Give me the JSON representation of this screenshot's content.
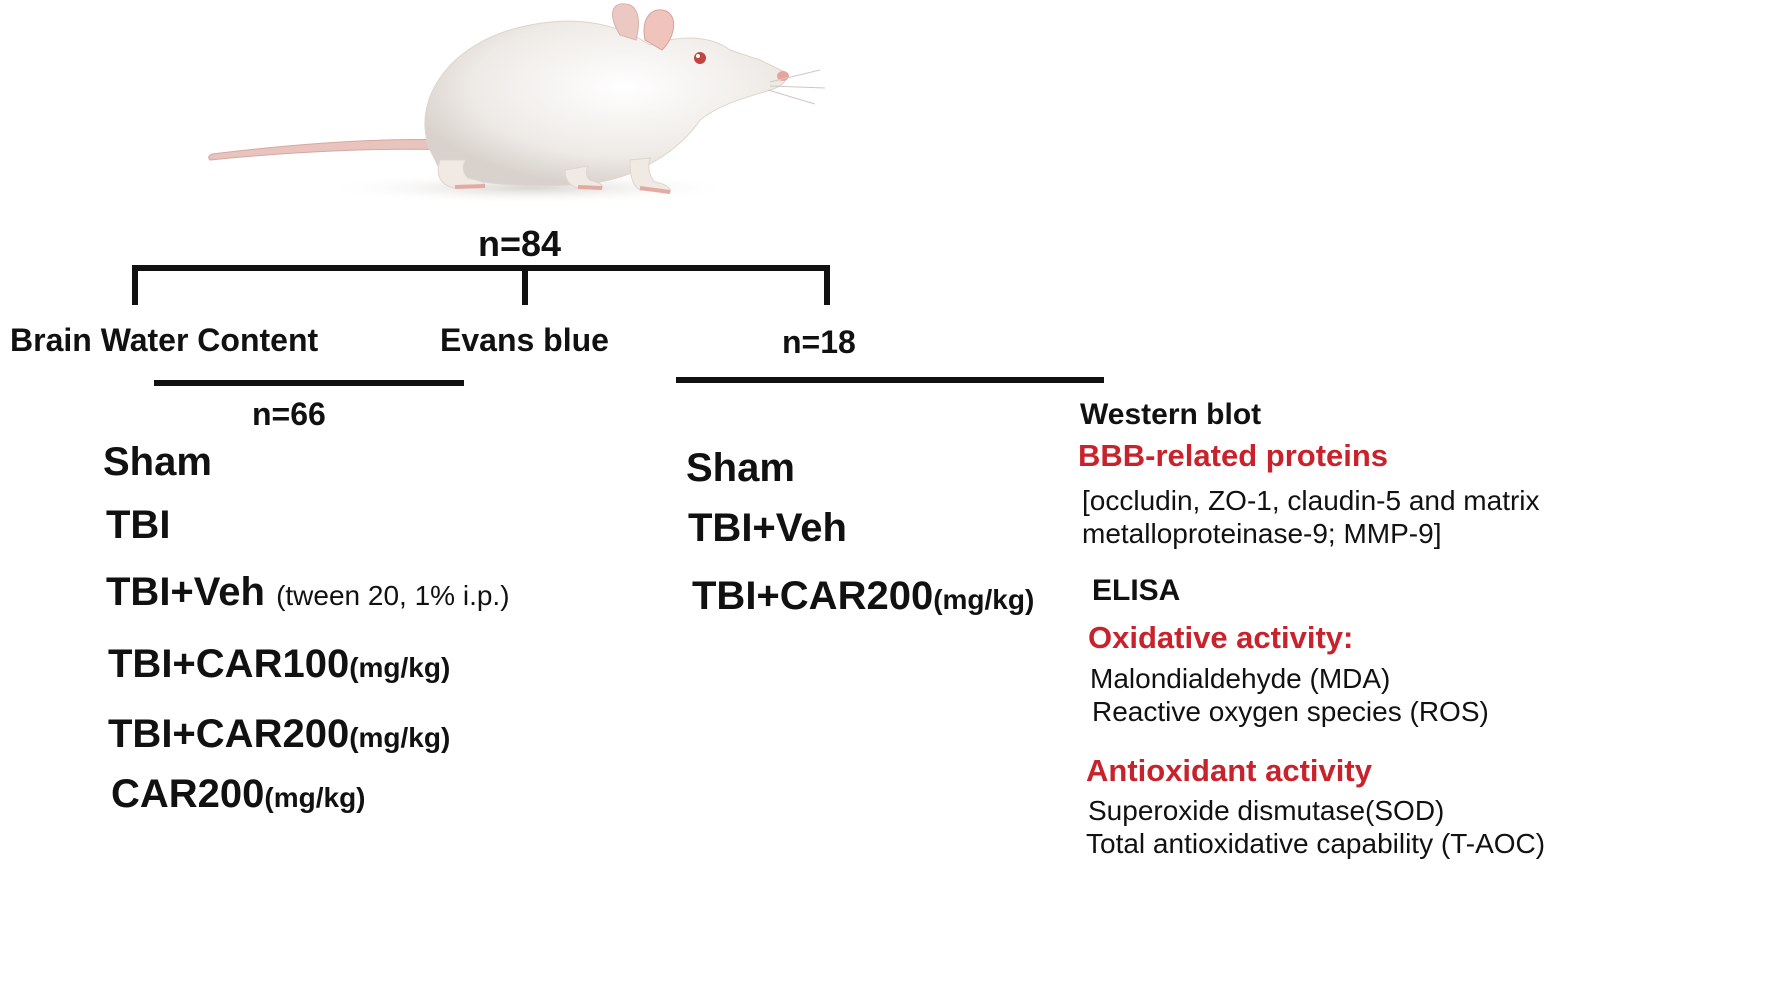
{
  "illustration": {
    "icon": "rat-icon"
  },
  "colors": {
    "accent_red": "#c8232c",
    "text": "#111111"
  },
  "tree": {
    "total": "n=84",
    "branches": {
      "water": "Brain Water Content",
      "evans": "Evans blue",
      "right_n": "n=18"
    },
    "left_n": "n=66"
  },
  "left_groups": [
    {
      "main": "Sham",
      "suffix": ""
    },
    {
      "main": "TBI",
      "suffix": ""
    },
    {
      "main": "TBI+Veh",
      "suffix": "(tween 20, 1% i.p.)"
    },
    {
      "main": "TBI+CAR100",
      "suffix": "(mg/kg)"
    },
    {
      "main": "TBI+CAR200",
      "suffix": "(mg/kg)"
    },
    {
      "main": "CAR200",
      "suffix": "(mg/kg)"
    }
  ],
  "right_groups": [
    {
      "main": "Sham",
      "suffix": ""
    },
    {
      "main": "TBI+Veh",
      "suffix": ""
    },
    {
      "main": "TBI+CAR200",
      "suffix": "(mg/kg)"
    }
  ],
  "assays": {
    "western_title": "Western blot",
    "bbb_title": "BBB-related proteins",
    "bbb_line1": "[occludin, ZO-1, claudin-5 and matrix",
    "bbb_line2": "metalloproteinase-9; MMP-9]",
    "elisa_title": "ELISA",
    "oxidative_title": "Oxidative activity:",
    "oxidative_items": [
      "Malondialdehyde (MDA)",
      "Reactive oxygen species (ROS)"
    ],
    "antioxidant_title": "Antioxidant activity",
    "antioxidant_items": [
      "Superoxide dismutase(SOD)",
      "Total antioxidative capability (T-AOC)"
    ]
  }
}
